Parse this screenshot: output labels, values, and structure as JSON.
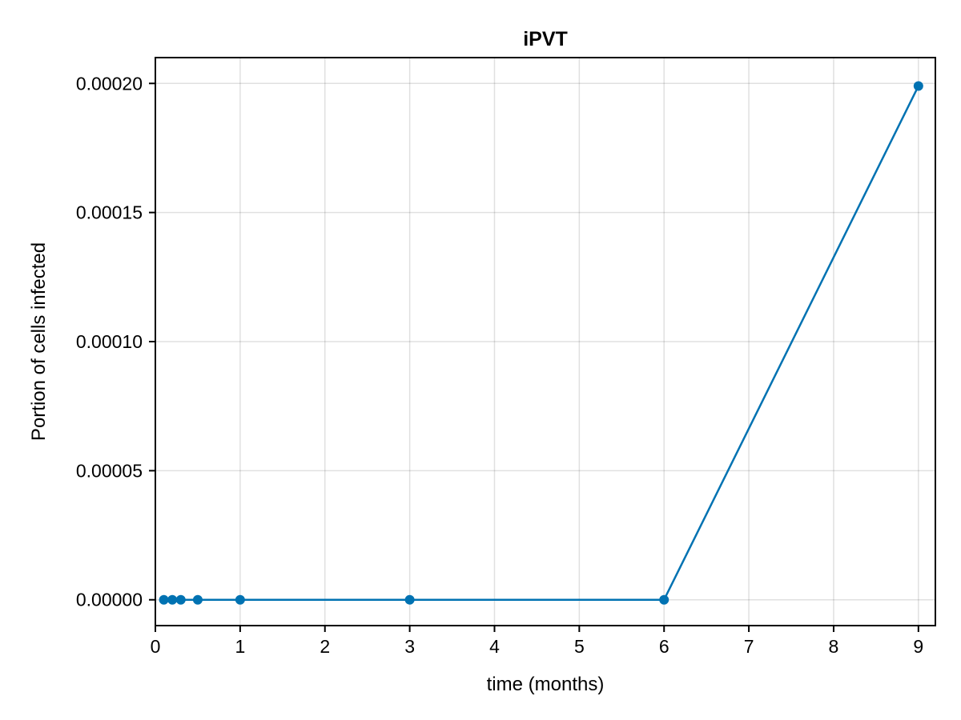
{
  "chart_data": {
    "type": "line",
    "title": "iPVT",
    "xlabel": "time (months)",
    "ylabel": "Portion of cells infected",
    "xlim": [
      0,
      9.2
    ],
    "ylim": [
      -1e-05,
      0.00021
    ],
    "xticks": [
      0,
      1,
      2,
      3,
      4,
      5,
      6,
      7,
      8,
      9
    ],
    "xtick_labels": [
      "0",
      "1",
      "2",
      "3",
      "4",
      "5",
      "6",
      "7",
      "8",
      "9"
    ],
    "yticks": [
      0,
      5e-05,
      0.0001,
      0.00015,
      0.0002
    ],
    "ytick_labels": [
      "0.00000",
      "0.00005",
      "0.00010",
      "0.00015",
      "0.00020"
    ],
    "grid": true,
    "legend": false,
    "series": [
      {
        "color": "#0072b2",
        "markers": true,
        "x": [
          0.1,
          0.2,
          0.3,
          0.5,
          1,
          3,
          6,
          9
        ],
        "y": [
          0,
          0,
          0,
          0,
          0,
          0,
          0,
          0.000199
        ]
      }
    ]
  }
}
